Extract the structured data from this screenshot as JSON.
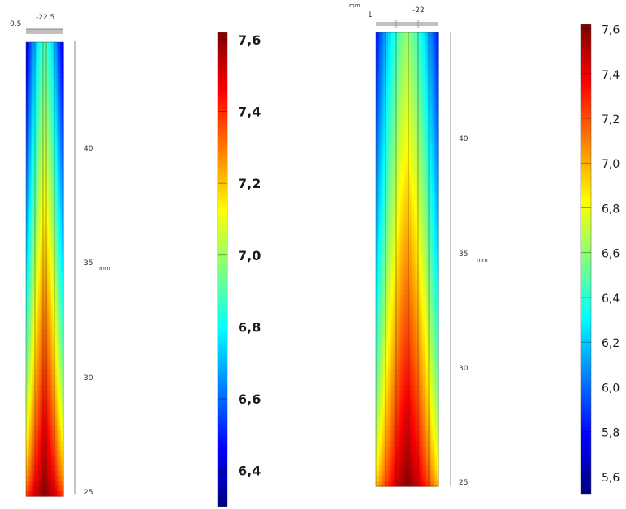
{
  "chart_data": [
    {
      "type": "heatmap",
      "title": "",
      "top_axis": {
        "ticks": [
          "0.5",
          "-22.5"
        ]
      },
      "y_axis": {
        "label": "mm",
        "ticks": [
          "40",
          "35",
          "30",
          "25"
        ],
        "range": [
          25,
          44
        ]
      },
      "colorbar": {
        "range": [
          6.3,
          7.62
        ],
        "ticks": [
          "7,6",
          "7,4",
          "7,2",
          "7,0",
          "6,8",
          "6,6",
          "6,4"
        ]
      },
      "field_description_values": {
        "center_bottom": 7.6,
        "center_top": 6.9,
        "edge_top": 6.4,
        "edge_bottom": 7.4
      }
    },
    {
      "type": "heatmap",
      "title": "",
      "top_axis": {
        "unit": "mm",
        "ticks": [
          "1",
          "-22"
        ]
      },
      "y_axis": {
        "label": "mm",
        "ticks": [
          "40",
          "35",
          "30",
          "25"
        ],
        "range": [
          25,
          44
        ]
      },
      "colorbar": {
        "range": [
          5.52,
          7.62
        ],
        "ticks": [
          "7,6",
          "7,4",
          "7,2",
          "7,0",
          "6,8",
          "6,6",
          "6,4",
          "6,2",
          "6,0",
          "5,8",
          "5,6"
        ]
      },
      "field_description_values": {
        "center_bottom": 7.6,
        "center_top": 6.6,
        "edge_top": 5.8,
        "edge_bottom": 7.0
      }
    }
  ]
}
